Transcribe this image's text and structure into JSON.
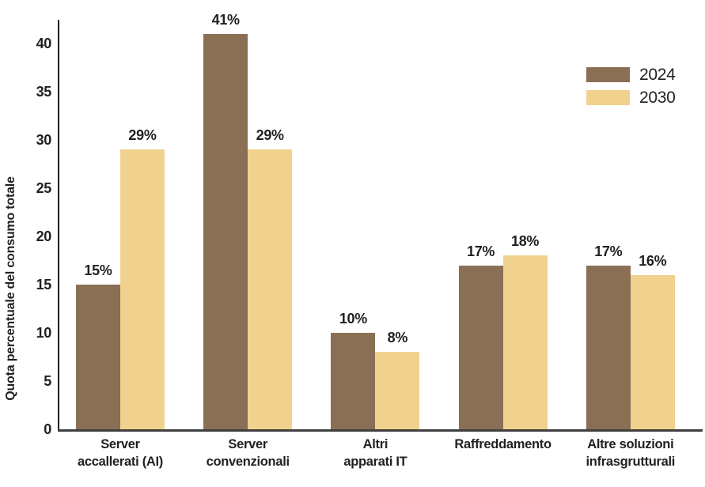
{
  "chart_data": {
    "type": "bar",
    "title": "",
    "ylabel": "Quota percentuale del consumo totale",
    "xlabel": "",
    "categories": [
      "Server\naccallerati (AI)",
      "Server\nconvenzionali",
      "Altri\napparati IT",
      "Raffreddamento",
      "Altre soluzioni\ninfrasgrutturali"
    ],
    "series": [
      {
        "name": "2024",
        "color": "#8a6f55",
        "values": [
          15,
          41,
          10,
          17,
          17
        ]
      },
      {
        "name": "2030",
        "color": "#f0d28e",
        "values": [
          29,
          29,
          8,
          18,
          16
        ]
      }
    ],
    "value_suffix": "%",
    "yticks": [
      0,
      5,
      10,
      15,
      20,
      25,
      30,
      35,
      40
    ],
    "ylim": [
      0,
      42.5
    ],
    "grid": false,
    "legend_position": "top-right",
    "colors": {
      "axis": "#231f20",
      "text": "#231f20",
      "background": "#ffffff"
    }
  }
}
